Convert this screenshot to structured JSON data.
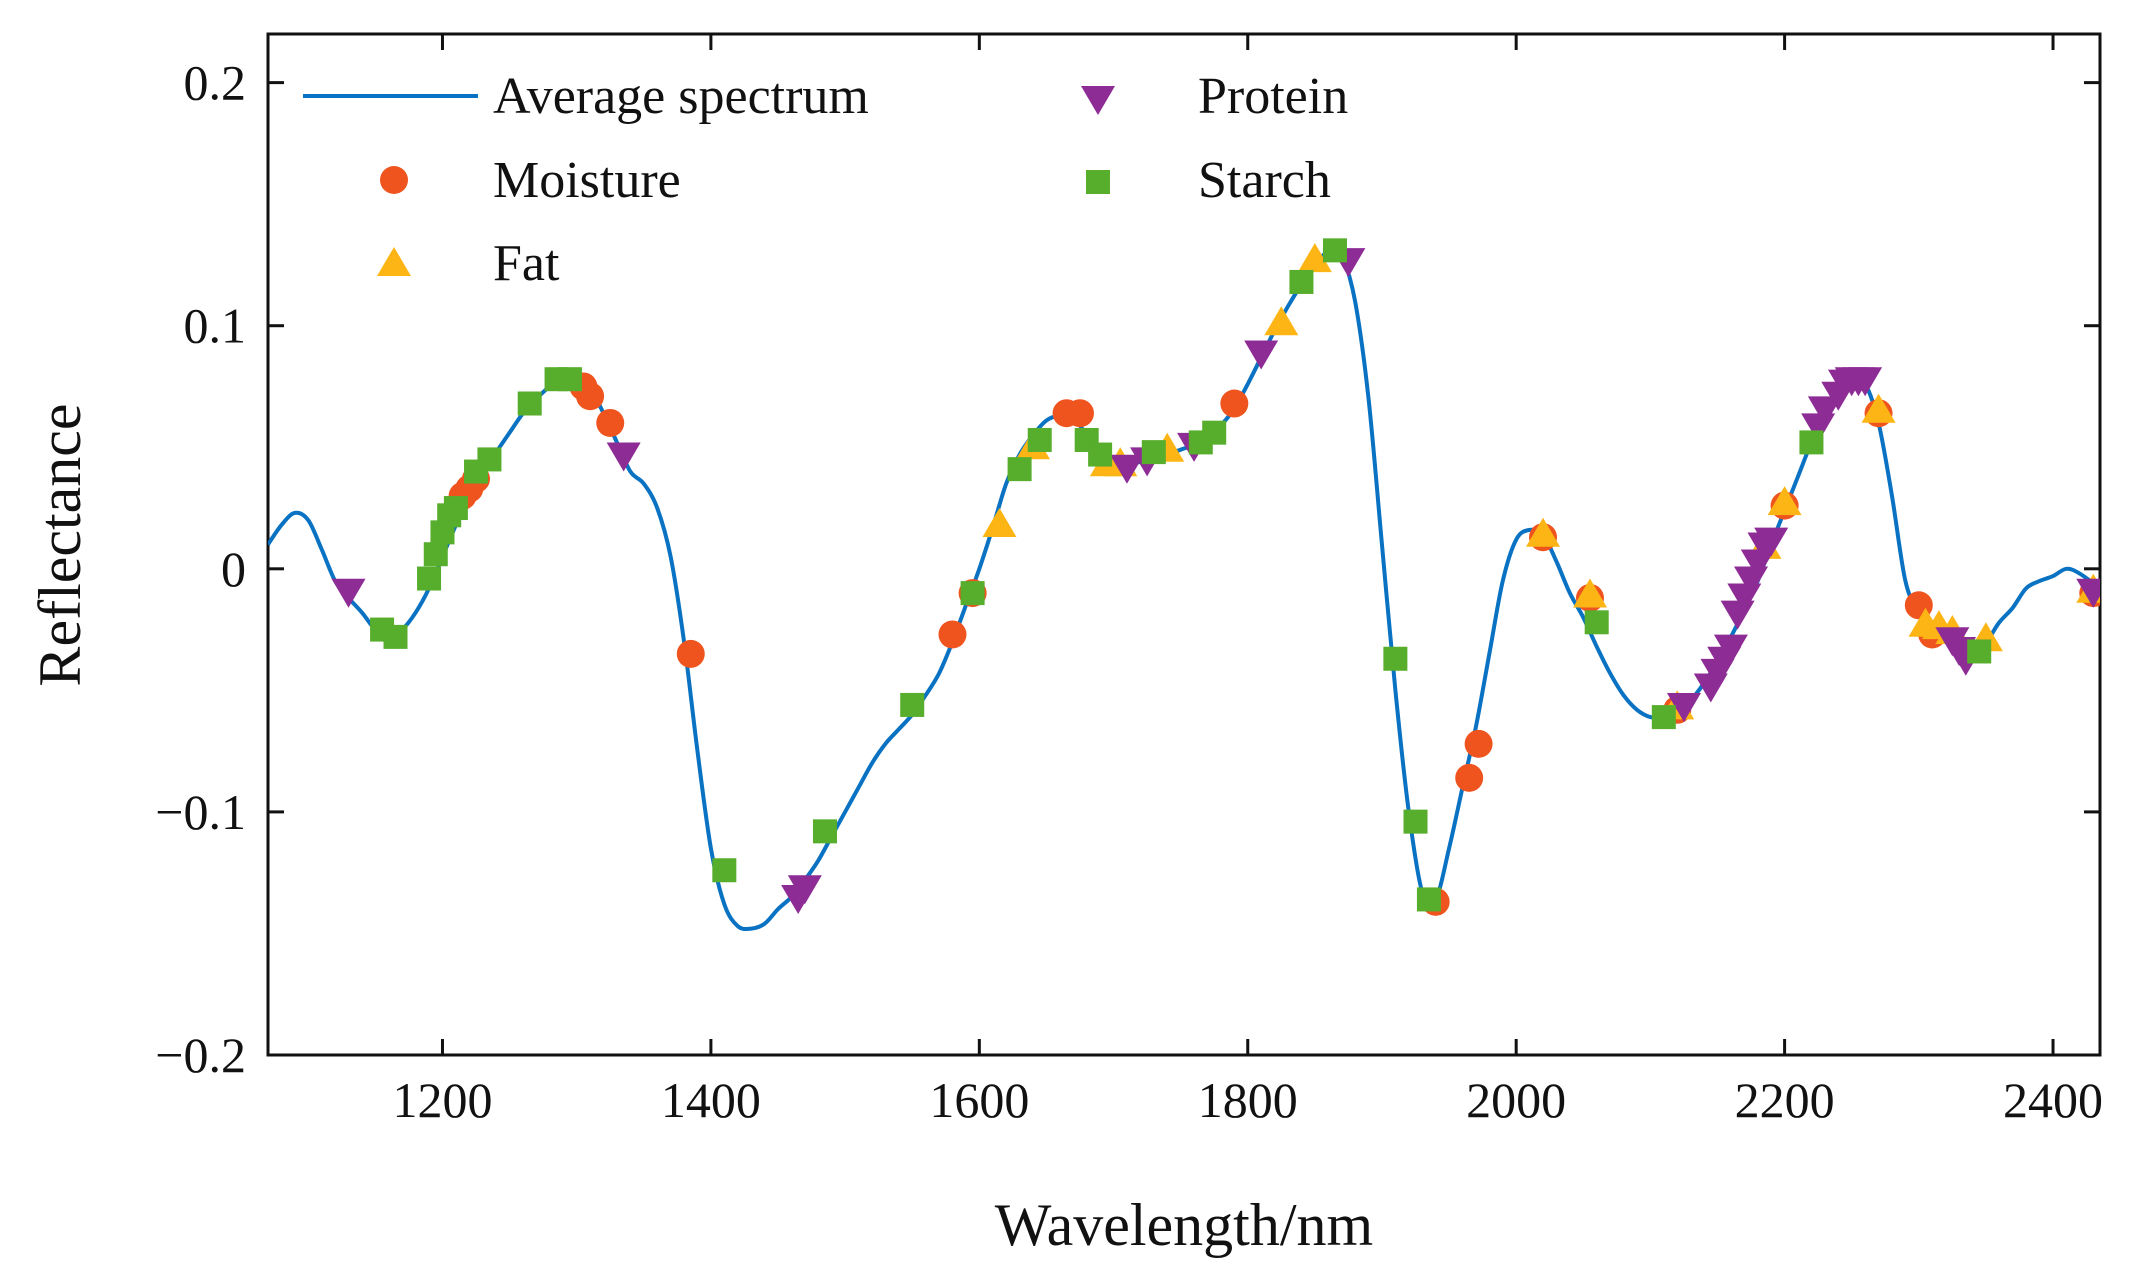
{
  "chart_data": {
    "type": "line",
    "title": "",
    "xlabel": "Wavelength/nm",
    "ylabel": "Reflectance",
    "xlim": [
      1070,
      2435
    ],
    "ylim": [
      -0.2,
      0.22
    ],
    "xticks": [
      1200,
      1400,
      1600,
      1800,
      2000,
      2200,
      2400
    ],
    "xtick_labels": [
      "1200",
      "1400",
      "1600",
      "1800",
      "2000",
      "2200",
      "2400"
    ],
    "yticks": [
      -0.2,
      -0.1,
      0,
      0.1,
      0.2
    ],
    "ytick_labels": [
      "−0.2",
      "−0.1",
      "0",
      "0.1",
      "0.2"
    ],
    "grid": false,
    "legend_position": "top-left",
    "legend": [
      "Average spectrum",
      "Moisture",
      "Fat",
      "Protein",
      "Starch"
    ],
    "colors": {
      "spectrum": "#0a72c2",
      "moisture": "#f0541e",
      "fat": "#fdb515",
      "protein": "#8e2c96",
      "starch": "#57ad2c"
    },
    "series": [
      {
        "name": "Average spectrum",
        "kind": "line",
        "x": [
          1070,
          1080,
          1090,
          1100,
          1110,
          1120,
          1130,
          1140,
          1150,
          1160,
          1170,
          1180,
          1190,
          1200,
          1210,
          1220,
          1230,
          1240,
          1250,
          1260,
          1270,
          1280,
          1290,
          1300,
          1310,
          1320,
          1330,
          1340,
          1350,
          1360,
          1370,
          1380,
          1390,
          1400,
          1410,
          1420,
          1430,
          1440,
          1450,
          1460,
          1470,
          1480,
          1490,
          1500,
          1510,
          1520,
          1530,
          1540,
          1550,
          1560,
          1570,
          1580,
          1590,
          1600,
          1610,
          1620,
          1630,
          1640,
          1650,
          1660,
          1670,
          1680,
          1690,
          1700,
          1710,
          1720,
          1730,
          1740,
          1750,
          1760,
          1770,
          1780,
          1790,
          1800,
          1810,
          1820,
          1830,
          1840,
          1850,
          1860,
          1865,
          1870,
          1880,
          1890,
          1900,
          1910,
          1920,
          1930,
          1940,
          1950,
          1960,
          1970,
          1980,
          1990,
          2000,
          2010,
          2020,
          2030,
          2040,
          2050,
          2060,
          2070,
          2080,
          2090,
          2100,
          2110,
          2120,
          2130,
          2140,
          2150,
          2160,
          2170,
          2180,
          2190,
          2200,
          2210,
          2220,
          2230,
          2240,
          2250,
          2260,
          2270,
          2280,
          2290,
          2300,
          2310,
          2320,
          2330,
          2340,
          2350,
          2360,
          2370,
          2380,
          2390,
          2400,
          2410,
          2420,
          2435
        ],
        "y": [
          0.01,
          0.018,
          0.023,
          0.02,
          0.008,
          -0.005,
          -0.012,
          -0.018,
          -0.025,
          -0.028,
          -0.025,
          -0.018,
          -0.008,
          0.005,
          0.018,
          0.03,
          0.04,
          0.048,
          0.056,
          0.064,
          0.07,
          0.075,
          0.078,
          0.078,
          0.074,
          0.064,
          0.052,
          0.04,
          0.035,
          0.025,
          0.005,
          -0.03,
          -0.075,
          -0.115,
          -0.138,
          -0.147,
          -0.148,
          -0.146,
          -0.14,
          -0.135,
          -0.128,
          -0.12,
          -0.11,
          -0.1,
          -0.09,
          -0.08,
          -0.072,
          -0.066,
          -0.06,
          -0.052,
          -0.043,
          -0.03,
          -0.015,
          0.0,
          0.017,
          0.035,
          0.047,
          0.055,
          0.061,
          0.063,
          0.062,
          0.055,
          0.047,
          0.044,
          0.043,
          0.044,
          0.046,
          0.047,
          0.049,
          0.051,
          0.054,
          0.059,
          0.066,
          0.076,
          0.087,
          0.098,
          0.108,
          0.117,
          0.125,
          0.131,
          0.132,
          0.13,
          0.11,
          0.07,
          0.01,
          -0.05,
          -0.1,
          -0.133,
          -0.136,
          -0.115,
          -0.09,
          -0.065,
          -0.035,
          -0.005,
          0.012,
          0.016,
          0.014,
          0.003,
          -0.01,
          -0.02,
          -0.032,
          -0.043,
          -0.052,
          -0.058,
          -0.061,
          -0.061,
          -0.058,
          -0.054,
          -0.047,
          -0.038,
          -0.028,
          -0.017,
          -0.005,
          0.01,
          0.024,
          0.038,
          0.052,
          0.064,
          0.074,
          0.078,
          0.076,
          0.06,
          0.03,
          -0.005,
          -0.018,
          -0.025,
          -0.028,
          -0.03,
          -0.032,
          -0.03,
          -0.022,
          -0.016,
          -0.008,
          -0.005,
          -0.003,
          0.0,
          -0.002,
          -0.008
        ]
      },
      {
        "name": "Moisture",
        "kind": "scatter",
        "marker": "circle",
        "x": [
          1215,
          1220,
          1225,
          1305,
          1310,
          1325,
          1385,
          1580,
          1595,
          1665,
          1675,
          1790,
          2020,
          2055,
          1940,
          1965,
          1972,
          2120,
          2200,
          2270,
          2300,
          2310,
          2430
        ],
        "y": [
          0.03,
          0.033,
          0.037,
          0.075,
          0.071,
          0.06,
          -0.035,
          -0.027,
          -0.01,
          0.064,
          0.064,
          0.068,
          0.013,
          -0.012,
          -0.137,
          -0.086,
          -0.072,
          -0.058,
          0.026,
          0.064,
          -0.015,
          -0.027,
          -0.01
        ]
      },
      {
        "name": "Fat",
        "kind": "scatter",
        "marker": "triangle-up",
        "x": [
          1615,
          1640,
          1695,
          1705,
          1740,
          1825,
          1850,
          2020,
          2055,
          2120,
          2185,
          2200,
          2270,
          2305,
          2315,
          2325,
          2350,
          2430
        ],
        "y": [
          0.018,
          0.05,
          0.043,
          0.043,
          0.049,
          0.101,
          0.127,
          0.014,
          -0.011,
          -0.057,
          0.009,
          0.027,
          0.065,
          -0.023,
          -0.024,
          -0.026,
          -0.029,
          -0.009
        ]
      },
      {
        "name": "Protein",
        "kind": "scatter",
        "marker": "triangle-down",
        "x": [
          1130,
          1335,
          1465,
          1470,
          1710,
          1725,
          1760,
          1810,
          1875,
          2125,
          2145,
          2150,
          2155,
          2160,
          2165,
          2170,
          2175,
          2180,
          2185,
          2190,
          2225,
          2230,
          2240,
          2245,
          2250,
          2255,
          2260,
          2325,
          2330,
          2335,
          2430
        ],
        "y": [
          -0.009,
          0.047,
          -0.135,
          -0.131,
          0.042,
          0.045,
          0.051,
          0.089,
          0.127,
          -0.056,
          -0.048,
          -0.042,
          -0.037,
          -0.032,
          -0.018,
          -0.011,
          -0.004,
          0.003,
          0.01,
          0.012,
          0.059,
          0.066,
          0.072,
          0.077,
          0.078,
          0.078,
          0.078,
          -0.029,
          -0.033,
          -0.037,
          -0.009
        ]
      },
      {
        "name": "Starch",
        "kind": "scatter",
        "marker": "square",
        "x": [
          1155,
          1165,
          1190,
          1195,
          1200,
          1205,
          1210,
          1225,
          1235,
          1265,
          1285,
          1295,
          1410,
          1485,
          1550,
          1595,
          1630,
          1645,
          1680,
          1690,
          1730,
          1765,
          1775,
          1840,
          1865,
          1910,
          1925,
          1935,
          2060,
          2110,
          2220,
          2345
        ],
        "y": [
          -0.025,
          -0.028,
          -0.004,
          0.006,
          0.015,
          0.022,
          0.025,
          0.04,
          0.045,
          0.068,
          0.078,
          0.078,
          -0.124,
          -0.108,
          -0.056,
          -0.01,
          0.041,
          0.053,
          0.053,
          0.047,
          0.048,
          0.052,
          0.056,
          0.118,
          0.131,
          -0.037,
          -0.104,
          -0.136,
          -0.022,
          -0.061,
          0.052,
          -0.034
        ]
      }
    ]
  }
}
